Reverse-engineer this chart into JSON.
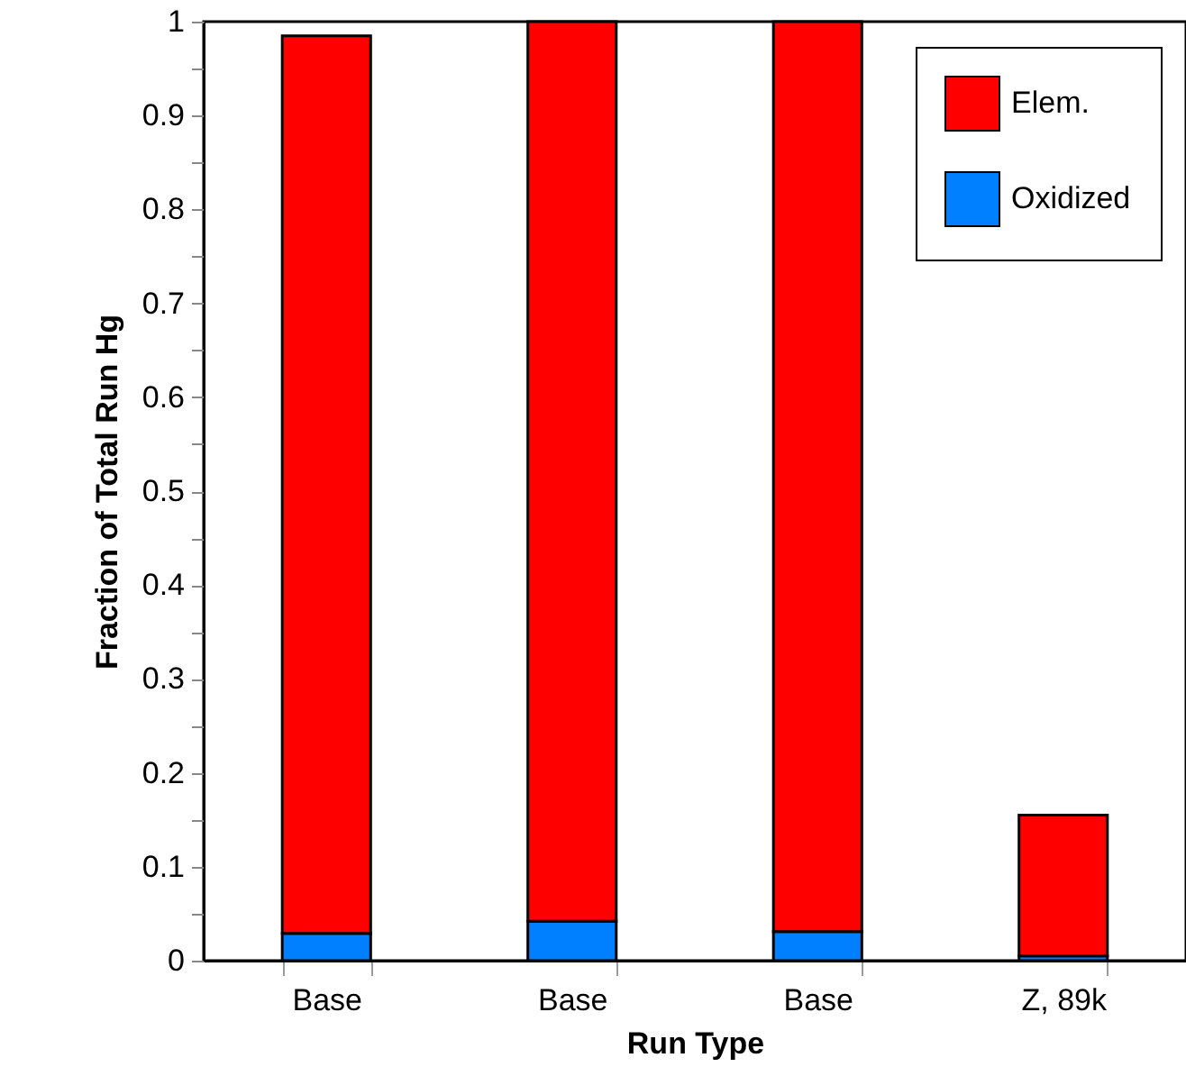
{
  "chart_data": {
    "type": "bar",
    "stacked": true,
    "xlabel": "Run Type",
    "ylabel": "Fraction of Total Run Hg",
    "categories": [
      "Base",
      "Base",
      "Base",
      "Z, 89k"
    ],
    "series": [
      {
        "name": "Oxidized",
        "color": "#0080ff",
        "values": [
          0.029,
          0.042,
          0.031,
          0.005
        ]
      },
      {
        "name": "Elem.",
        "color": "#ff0000",
        "values": [
          0.956,
          0.958,
          0.969,
          0.15
        ]
      }
    ],
    "ylim": [
      0,
      1
    ],
    "yticks": [
      0,
      {
        "value": 0.05,
        "label": null
      },
      0.1,
      {
        "value": 0.15,
        "label": null
      },
      0.2,
      {
        "value": 0.25,
        "label": null
      },
      0.3,
      {
        "value": 0.35,
        "label": null
      },
      0.4,
      {
        "value": 0.45,
        "label": null
      },
      0.5,
      {
        "value": 0.55,
        "label": null
      },
      0.6,
      {
        "value": 0.65,
        "label": null
      },
      0.7,
      {
        "value": 0.75,
        "label": null
      },
      0.8,
      {
        "value": 0.85,
        "label": null
      },
      0.9,
      {
        "value": 0.95,
        "label": null
      },
      1
    ],
    "legend": "top right"
  }
}
